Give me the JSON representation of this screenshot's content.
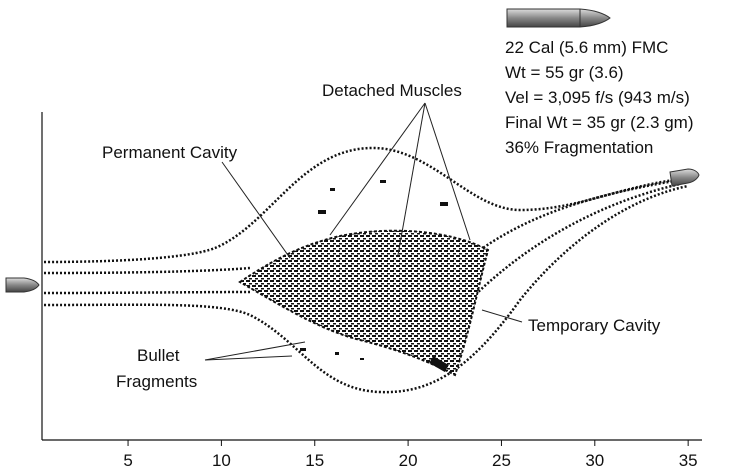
{
  "bullet_info": [
    "22 Cal (5.6 mm) FMC",
    "Wt = 55 gr (3.6)",
    "Vel = 3,095 f/s (943 m/s)",
    "Final Wt = 35 gr (2.3 gm)",
    "36% Fragmentation"
  ],
  "labels": {
    "detached_muscles": "Detached Muscles",
    "permanent_cavity": "Permanent Cavity",
    "temporary_cavity": "Temporary Cavity",
    "bullet_fragments": [
      "Bullet",
      "Fragments"
    ]
  },
  "axis": {
    "ticks": [
      5,
      10,
      15,
      20,
      25,
      30,
      35
    ]
  }
}
